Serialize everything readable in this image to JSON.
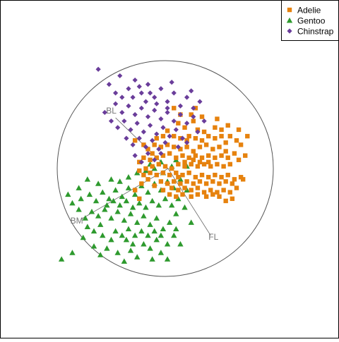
{
  "chart_data": {
    "type": "scatter",
    "title": "",
    "xlabel": "",
    "ylabel": "",
    "grid": false,
    "legend_position": "top-right",
    "axis_labels": [
      "BL",
      "BM",
      "FL"
    ],
    "series": [
      {
        "name": "Adelie",
        "marker": "square",
        "color": "#e6820e",
        "points": [
          [
            -0.08,
            0.28
          ],
          [
            0.02,
            0.35
          ],
          [
            0.08,
            0.3
          ],
          [
            0.12,
            0.42
          ],
          [
            0.18,
            0.38
          ],
          [
            0.22,
            0.3
          ],
          [
            0.26,
            0.44
          ],
          [
            0.3,
            0.36
          ],
          [
            0.36,
            0.34
          ],
          [
            0.4,
            0.3
          ],
          [
            0.46,
            0.28
          ],
          [
            0.52,
            0.3
          ],
          [
            0.56,
            0.24
          ],
          [
            0.6,
            0.3
          ],
          [
            0.66,
            0.26
          ],
          [
            0.7,
            0.22
          ],
          [
            0.5,
            0.2
          ],
          [
            0.44,
            0.18
          ],
          [
            0.38,
            0.22
          ],
          [
            0.32,
            0.2
          ],
          [
            0.26,
            0.16
          ],
          [
            0.2,
            0.2
          ],
          [
            0.14,
            0.18
          ],
          [
            0.08,
            0.2
          ],
          [
            0.02,
            0.22
          ],
          [
            -0.04,
            0.2
          ],
          [
            -0.1,
            0.22
          ],
          [
            -0.16,
            0.18
          ],
          [
            -0.2,
            0.1
          ],
          [
            -0.14,
            0.08
          ],
          [
            -0.08,
            0.1
          ],
          [
            -0.02,
            0.12
          ],
          [
            0.04,
            0.14
          ],
          [
            0.1,
            0.1
          ],
          [
            0.16,
            0.12
          ],
          [
            0.22,
            0.1
          ],
          [
            0.28,
            0.12
          ],
          [
            0.34,
            0.1
          ],
          [
            0.4,
            0.12
          ],
          [
            0.46,
            0.1
          ],
          [
            0.52,
            0.12
          ],
          [
            0.58,
            0.1
          ],
          [
            0.64,
            0.14
          ],
          [
            0.68,
            0.08
          ],
          [
            0.6,
            0.04
          ],
          [
            0.54,
            0.02
          ],
          [
            0.48,
            0.04
          ],
          [
            0.42,
            0.02
          ],
          [
            0.36,
            0.04
          ],
          [
            0.3,
            0.02
          ],
          [
            0.24,
            0.04
          ],
          [
            0.18,
            0.02
          ],
          [
            0.12,
            0.04
          ],
          [
            0.06,
            0.0
          ],
          [
            0.0,
            0.02
          ],
          [
            -0.06,
            0.04
          ],
          [
            -0.12,
            0.02
          ],
          [
            -0.18,
            0.0
          ],
          [
            -0.24,
            -0.02
          ],
          [
            -0.2,
            -0.06
          ],
          [
            -0.14,
            -0.04
          ],
          [
            -0.08,
            -0.06
          ],
          [
            -0.02,
            -0.04
          ],
          [
            0.04,
            -0.06
          ],
          [
            0.1,
            -0.04
          ],
          [
            0.16,
            -0.06
          ],
          [
            0.22,
            -0.04
          ],
          [
            0.28,
            -0.08
          ],
          [
            0.34,
            -0.06
          ],
          [
            0.4,
            -0.08
          ],
          [
            0.46,
            -0.06
          ],
          [
            0.52,
            -0.08
          ],
          [
            0.58,
            -0.06
          ],
          [
            0.64,
            -0.1
          ],
          [
            0.7,
            -0.08
          ],
          [
            0.62,
            -0.14
          ],
          [
            0.56,
            -0.12
          ],
          [
            0.5,
            -0.14
          ],
          [
            0.44,
            -0.12
          ],
          [
            0.38,
            -0.14
          ],
          [
            0.32,
            -0.12
          ],
          [
            0.26,
            -0.14
          ],
          [
            0.2,
            -0.12
          ],
          [
            0.14,
            -0.14
          ],
          [
            0.08,
            -0.12
          ],
          [
            0.02,
            -0.14
          ],
          [
            -0.04,
            -0.12
          ],
          [
            -0.1,
            -0.16
          ],
          [
            -0.16,
            -0.1
          ],
          [
            0.06,
            -0.18
          ],
          [
            0.12,
            -0.2
          ],
          [
            0.18,
            -0.18
          ],
          [
            0.24,
            -0.2
          ],
          [
            0.3,
            -0.18
          ],
          [
            0.36,
            -0.22
          ],
          [
            0.42,
            -0.2
          ],
          [
            0.48,
            -0.22
          ],
          [
            0.54,
            -0.2
          ],
          [
            0.6,
            -0.22
          ],
          [
            0.66,
            -0.18
          ],
          [
            0.5,
            -0.26
          ],
          [
            0.44,
            -0.24
          ],
          [
            0.38,
            -0.26
          ],
          [
            0.3,
            -0.24
          ],
          [
            0.24,
            -0.26
          ],
          [
            0.16,
            -0.24
          ],
          [
            0.1,
            -0.26
          ],
          [
            0.04,
            -0.24
          ],
          [
            -0.02,
            -0.2
          ],
          [
            0.62,
            -0.28
          ],
          [
            0.56,
            -0.3
          ],
          [
            0.72,
            -0.1
          ],
          [
            0.74,
            0.12
          ],
          [
            0.76,
            0.3
          ],
          [
            0.68,
            0.36
          ],
          [
            0.58,
            0.4
          ],
          [
            0.48,
            0.46
          ],
          [
            0.34,
            0.48
          ],
          [
            0.24,
            0.5
          ],
          [
            0.14,
            0.5
          ],
          [
            0.08,
            0.56
          ],
          [
            0.28,
            0.56
          ],
          [
            0.46,
            0.38
          ],
          [
            0.52,
            0.36
          ],
          [
            0.28,
            0.28
          ],
          [
            0.34,
            0.26
          ],
          [
            0.14,
            0.28
          ],
          [
            -0.02,
            0.3
          ],
          [
            -0.12,
            0.14
          ],
          [
            -0.2,
            0.22
          ],
          [
            -0.24,
            0.06
          ],
          [
            -0.28,
            0.26
          ],
          [
            -0.28,
            -0.2
          ],
          [
            -0.24,
            -0.28
          ],
          [
            -0.22,
            -0.14
          ],
          [
            0.2,
            0.26
          ],
          [
            0.18,
            0.06
          ],
          [
            0.26,
            0.08
          ],
          [
            0.32,
            0.06
          ],
          [
            0.4,
            0.06
          ],
          [
            0.56,
            0.16
          ],
          [
            0.12,
            -0.08
          ]
        ]
      },
      {
        "name": "Gentoo",
        "marker": "triangle",
        "color": "#2e9a2e",
        "points": [
          [
            -0.96,
            -0.84
          ],
          [
            -0.86,
            -0.78
          ],
          [
            -0.76,
            -0.64
          ],
          [
            -0.66,
            -0.72
          ],
          [
            -0.6,
            -0.8
          ],
          [
            -0.54,
            -0.74
          ],
          [
            -0.5,
            -0.66
          ],
          [
            -0.44,
            -0.78
          ],
          [
            -0.38,
            -0.86
          ],
          [
            -0.32,
            -0.76
          ],
          [
            -0.26,
            -0.82
          ],
          [
            -0.2,
            -0.7
          ],
          [
            -0.14,
            -0.74
          ],
          [
            -0.08,
            -0.66
          ],
          [
            -0.04,
            -0.78
          ],
          [
            0.02,
            -0.7
          ],
          [
            0.08,
            -0.62
          ],
          [
            0.14,
            -0.7
          ],
          [
            0.1,
            -0.56
          ],
          [
            0.04,
            -0.5
          ],
          [
            -0.02,
            -0.56
          ],
          [
            -0.08,
            -0.46
          ],
          [
            -0.14,
            -0.52
          ],
          [
            -0.2,
            -0.44
          ],
          [
            -0.26,
            -0.5
          ],
          [
            -0.32,
            -0.42
          ],
          [
            -0.38,
            -0.48
          ],
          [
            -0.44,
            -0.4
          ],
          [
            -0.5,
            -0.46
          ],
          [
            -0.56,
            -0.38
          ],
          [
            -0.62,
            -0.44
          ],
          [
            -0.68,
            -0.4
          ],
          [
            -0.74,
            -0.46
          ],
          [
            -0.8,
            -0.38
          ],
          [
            -0.86,
            -0.32
          ],
          [
            -0.78,
            -0.28
          ],
          [
            -0.7,
            -0.24
          ],
          [
            -0.64,
            -0.3
          ],
          [
            -0.58,
            -0.22
          ],
          [
            -0.52,
            -0.28
          ],
          [
            -0.46,
            -0.2
          ],
          [
            -0.4,
            -0.26
          ],
          [
            -0.34,
            -0.18
          ],
          [
            -0.28,
            -0.24
          ],
          [
            -0.22,
            -0.16
          ],
          [
            -0.16,
            -0.22
          ],
          [
            -0.1,
            -0.14
          ],
          [
            -0.04,
            -0.2
          ],
          [
            0.02,
            -0.12
          ],
          [
            0.08,
            -0.18
          ],
          [
            0.14,
            -0.1
          ],
          [
            0.12,
            -0.28
          ],
          [
            0.06,
            -0.34
          ],
          [
            0.0,
            -0.28
          ],
          [
            -0.06,
            -0.34
          ],
          [
            -0.12,
            -0.3
          ],
          [
            -0.18,
            -0.36
          ],
          [
            -0.24,
            -0.32
          ],
          [
            -0.3,
            -0.36
          ],
          [
            -0.36,
            -0.3
          ],
          [
            -0.42,
            -0.34
          ],
          [
            -0.48,
            -0.3
          ],
          [
            -0.54,
            -0.34
          ],
          [
            -0.6,
            -0.52
          ],
          [
            -0.66,
            -0.58
          ],
          [
            -0.72,
            -0.54
          ],
          [
            -0.58,
            -0.62
          ],
          [
            -0.46,
            -0.58
          ],
          [
            -0.4,
            -0.62
          ],
          [
            -0.34,
            -0.56
          ],
          [
            -0.28,
            -0.62
          ],
          [
            -0.22,
            -0.58
          ],
          [
            -0.16,
            -0.62
          ],
          [
            -0.1,
            -0.58
          ],
          [
            -0.04,
            -0.62
          ],
          [
            -0.26,
            -0.04
          ],
          [
            -0.18,
            -0.02
          ],
          [
            -0.1,
            0.0
          ],
          [
            -0.02,
            -0.04
          ],
          [
            0.06,
            0.02
          ],
          [
            -0.34,
            -0.08
          ],
          [
            -0.42,
            -0.12
          ],
          [
            -0.5,
            -0.1
          ],
          [
            -0.62,
            -0.14
          ],
          [
            -0.72,
            -0.1
          ],
          [
            -0.8,
            -0.18
          ],
          [
            -0.9,
            -0.24
          ],
          [
            -0.3,
            -0.7
          ],
          [
            -0.36,
            -0.66
          ],
          [
            -0.12,
            -0.84
          ],
          [
            0.02,
            -0.84
          ],
          [
            0.1,
            -0.42
          ],
          [
            0.18,
            -0.36
          ],
          [
            0.2,
            -0.2
          ],
          [
            0.2,
            0.02
          ],
          [
            0.24,
            -0.5
          ],
          [
            -0.04,
            0.06
          ],
          [
            -0.14,
            0.04
          ],
          [
            0.1,
            0.08
          ]
        ]
      },
      {
        "name": "Chinstrap",
        "marker": "diamond",
        "color": "#6a3d9a",
        "points": [
          [
            -0.62,
            0.92
          ],
          [
            -0.52,
            0.78
          ],
          [
            -0.42,
            0.86
          ],
          [
            -0.34,
            0.74
          ],
          [
            -0.28,
            0.82
          ],
          [
            -0.22,
            0.7
          ],
          [
            -0.16,
            0.78
          ],
          [
            -0.1,
            0.66
          ],
          [
            -0.04,
            0.74
          ],
          [
            0.02,
            0.62
          ],
          [
            0.08,
            0.7
          ],
          [
            0.14,
            0.58
          ],
          [
            0.2,
            0.66
          ],
          [
            0.26,
            0.56
          ],
          [
            0.32,
            0.62
          ],
          [
            -0.46,
            0.6
          ],
          [
            -0.4,
            0.52
          ],
          [
            -0.34,
            0.58
          ],
          [
            -0.28,
            0.5
          ],
          [
            -0.22,
            0.56
          ],
          [
            -0.16,
            0.48
          ],
          [
            -0.1,
            0.54
          ],
          [
            -0.04,
            0.46
          ],
          [
            0.02,
            0.52
          ],
          [
            0.08,
            0.44
          ],
          [
            0.14,
            0.5
          ],
          [
            0.2,
            0.42
          ],
          [
            0.26,
            0.48
          ],
          [
            -0.5,
            0.44
          ],
          [
            -0.44,
            0.38
          ],
          [
            -0.38,
            0.44
          ],
          [
            -0.32,
            0.36
          ],
          [
            -0.26,
            0.42
          ],
          [
            -0.2,
            0.34
          ],
          [
            -0.14,
            0.4
          ],
          [
            -0.08,
            0.32
          ],
          [
            -0.02,
            0.38
          ],
          [
            0.04,
            0.3
          ],
          [
            0.1,
            0.36
          ],
          [
            0.16,
            0.28
          ],
          [
            -0.36,
            0.28
          ],
          [
            -0.3,
            0.22
          ],
          [
            -0.24,
            0.28
          ],
          [
            -0.18,
            0.2
          ],
          [
            -0.12,
            0.26
          ],
          [
            -0.06,
            0.18
          ],
          [
            0.0,
            0.24
          ],
          [
            -0.28,
            0.12
          ],
          [
            -0.22,
            0.06
          ],
          [
            -0.16,
            0.14
          ],
          [
            -0.1,
            0.08
          ],
          [
            -0.04,
            0.14
          ],
          [
            0.12,
            0.2
          ],
          [
            0.2,
            0.24
          ],
          [
            0.3,
            0.34
          ],
          [
            -0.4,
            0.66
          ],
          [
            -0.3,
            0.66
          ],
          [
            -0.18,
            0.62
          ],
          [
            -0.08,
            0.6
          ],
          [
            0.02,
            0.56
          ],
          [
            -0.56,
            0.52
          ],
          [
            -0.46,
            0.7
          ],
          [
            -0.24,
            0.76
          ],
          [
            -0.14,
            0.7
          ],
          [
            0.06,
            0.8
          ],
          [
            0.24,
            0.72
          ],
          [
            0.36,
            0.44
          ]
        ]
      }
    ]
  }
}
